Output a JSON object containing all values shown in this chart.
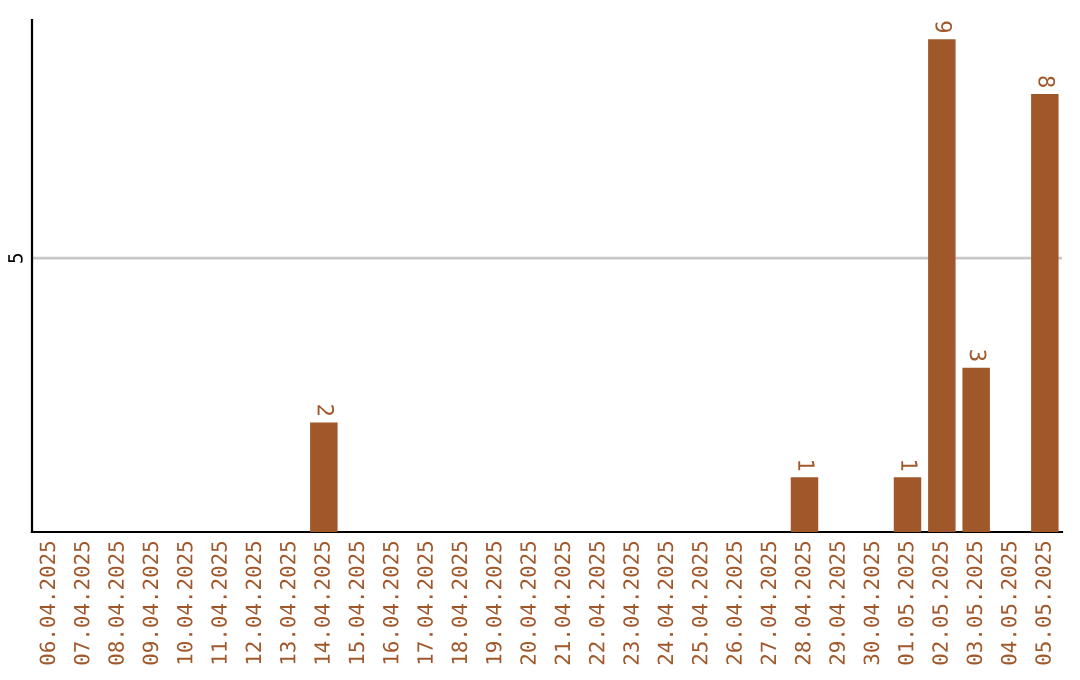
{
  "chart_data": {
    "type": "bar",
    "categories": [
      "06.04.2025",
      "07.04.2025",
      "08.04.2025",
      "09.04.2025",
      "10.04.2025",
      "11.04.2025",
      "12.04.2025",
      "13.04.2025",
      "14.04.2025",
      "15.04.2025",
      "16.04.2025",
      "17.04.2025",
      "18.04.2025",
      "19.04.2025",
      "20.04.2025",
      "21.04.2025",
      "22.04.2025",
      "23.04.2025",
      "24.04.2025",
      "25.04.2025",
      "26.04.2025",
      "27.04.2025",
      "28.04.2025",
      "29.04.2025",
      "30.04.2025",
      "01.05.2025",
      "02.05.2025",
      "03.05.2025",
      "04.05.2025",
      "05.05.2025"
    ],
    "values": [
      0,
      0,
      0,
      0,
      0,
      0,
      0,
      0,
      2,
      0,
      0,
      0,
      0,
      0,
      0,
      0,
      0,
      0,
      0,
      0,
      0,
      0,
      1,
      0,
      0,
      1,
      9,
      3,
      0,
      8
    ],
    "value_labels": [
      null,
      null,
      null,
      null,
      null,
      null,
      null,
      null,
      "2",
      null,
      null,
      null,
      null,
      null,
      null,
      null,
      null,
      null,
      null,
      null,
      null,
      null,
      "1",
      null,
      null,
      "1",
      "9",
      "3",
      null,
      "8"
    ],
    "color": "#a0572a",
    "ylim": [
      0,
      9.35
    ],
    "yticks": [
      5
    ],
    "grid": "y"
  }
}
